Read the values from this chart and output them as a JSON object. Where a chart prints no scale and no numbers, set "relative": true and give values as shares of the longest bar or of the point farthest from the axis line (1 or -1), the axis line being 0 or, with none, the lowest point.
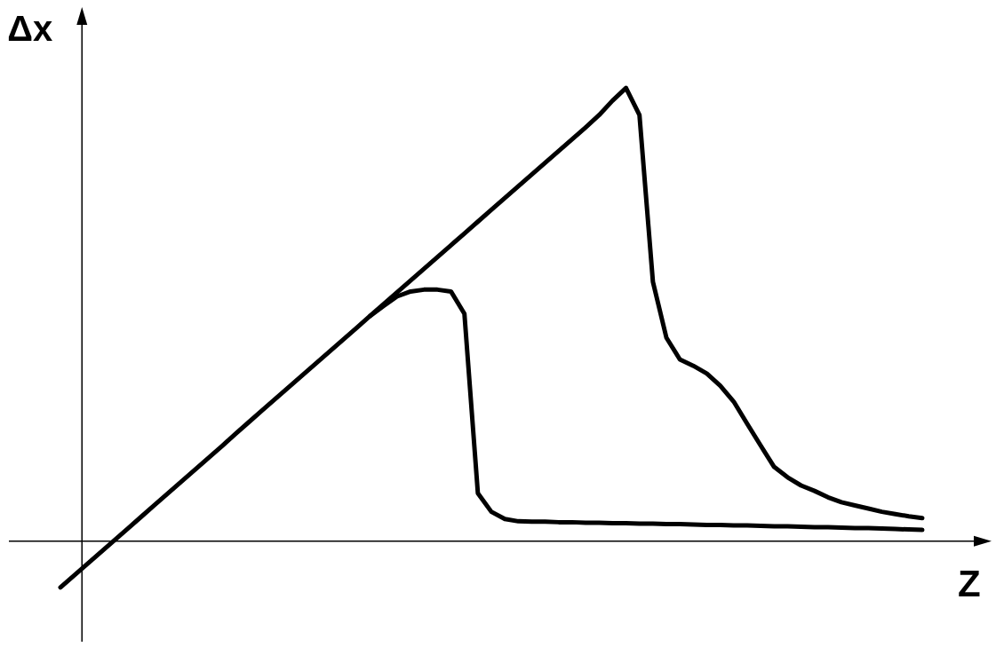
{
  "chart_data": {
    "type": "line",
    "relative": true,
    "xlabel": "Z",
    "ylabel": "Δx",
    "marker": "none",
    "line_style": "solid",
    "categories": [
      null,
      null,
      null,
      null,
      null,
      null,
      null,
      null,
      null,
      null,
      null,
      null,
      null,
      null,
      null,
      null,
      null,
      null,
      null,
      null,
      null,
      null,
      null,
      null,
      null,
      null,
      null,
      null,
      null,
      null,
      null,
      null,
      null,
      null,
      null,
      null,
      null,
      null,
      null,
      null,
      null,
      null,
      null,
      null,
      null,
      null,
      null,
      null,
      null,
      null,
      null,
      null,
      null,
      null,
      null,
      null,
      null,
      null,
      null,
      null,
      null,
      null,
      null,
      null,
      null
    ],
    "series": [
      {
        "color": "#000000",
        "values": [
          -0.102,
          -0.076,
          -0.05,
          -0.024,
          0.002,
          0.028,
          0.054,
          0.08,
          0.106,
          0.132,
          0.158,
          0.184,
          0.21,
          0.237,
          0.263,
          0.289,
          0.315,
          0.341,
          0.367,
          0.393,
          0.419,
          0.445,
          0.471,
          0.497,
          0.523,
          0.549,
          0.575,
          0.601,
          0.627,
          0.653,
          0.679,
          0.705,
          0.731,
          0.757,
          0.783,
          0.809,
          0.835,
          0.861,
          0.887,
          0.913,
          0.94,
          0.972,
          1,
          0.94,
          0.572,
          0.449,
          0.401,
          0.387,
          0.37,
          0.343,
          0.308,
          0.259,
          0.211,
          0.164,
          0.141,
          0.123,
          0.111,
          0.097,
          0.086,
          0.079,
          0.072,
          0.065,
          0.06,
          0.055,
          0.051
        ]
      },
      {
        "color": "#000000",
        "values": [
          null,
          null,
          null,
          null,
          null,
          null,
          null,
          null,
          null,
          null,
          null,
          null,
          null,
          null,
          null,
          null,
          null,
          null,
          null,
          null,
          null,
          null,
          null,
          0.497,
          0.519,
          0.54,
          0.551,
          0.555,
          0.555,
          0.551,
          0.502,
          0.106,
          0.065,
          0.049,
          0.044,
          0.043,
          0.043,
          0.042,
          0.042,
          0.041,
          0.041,
          0.04,
          0.04,
          0.039,
          0.039,
          0.038,
          0.038,
          0.037,
          0.036,
          0.036,
          0.035,
          0.035,
          0.034,
          0.033,
          0.033,
          0.032,
          0.031,
          0.031,
          0.03,
          0.029,
          0.029,
          0.028,
          0.027,
          0.026,
          0.025
        ]
      }
    ]
  }
}
